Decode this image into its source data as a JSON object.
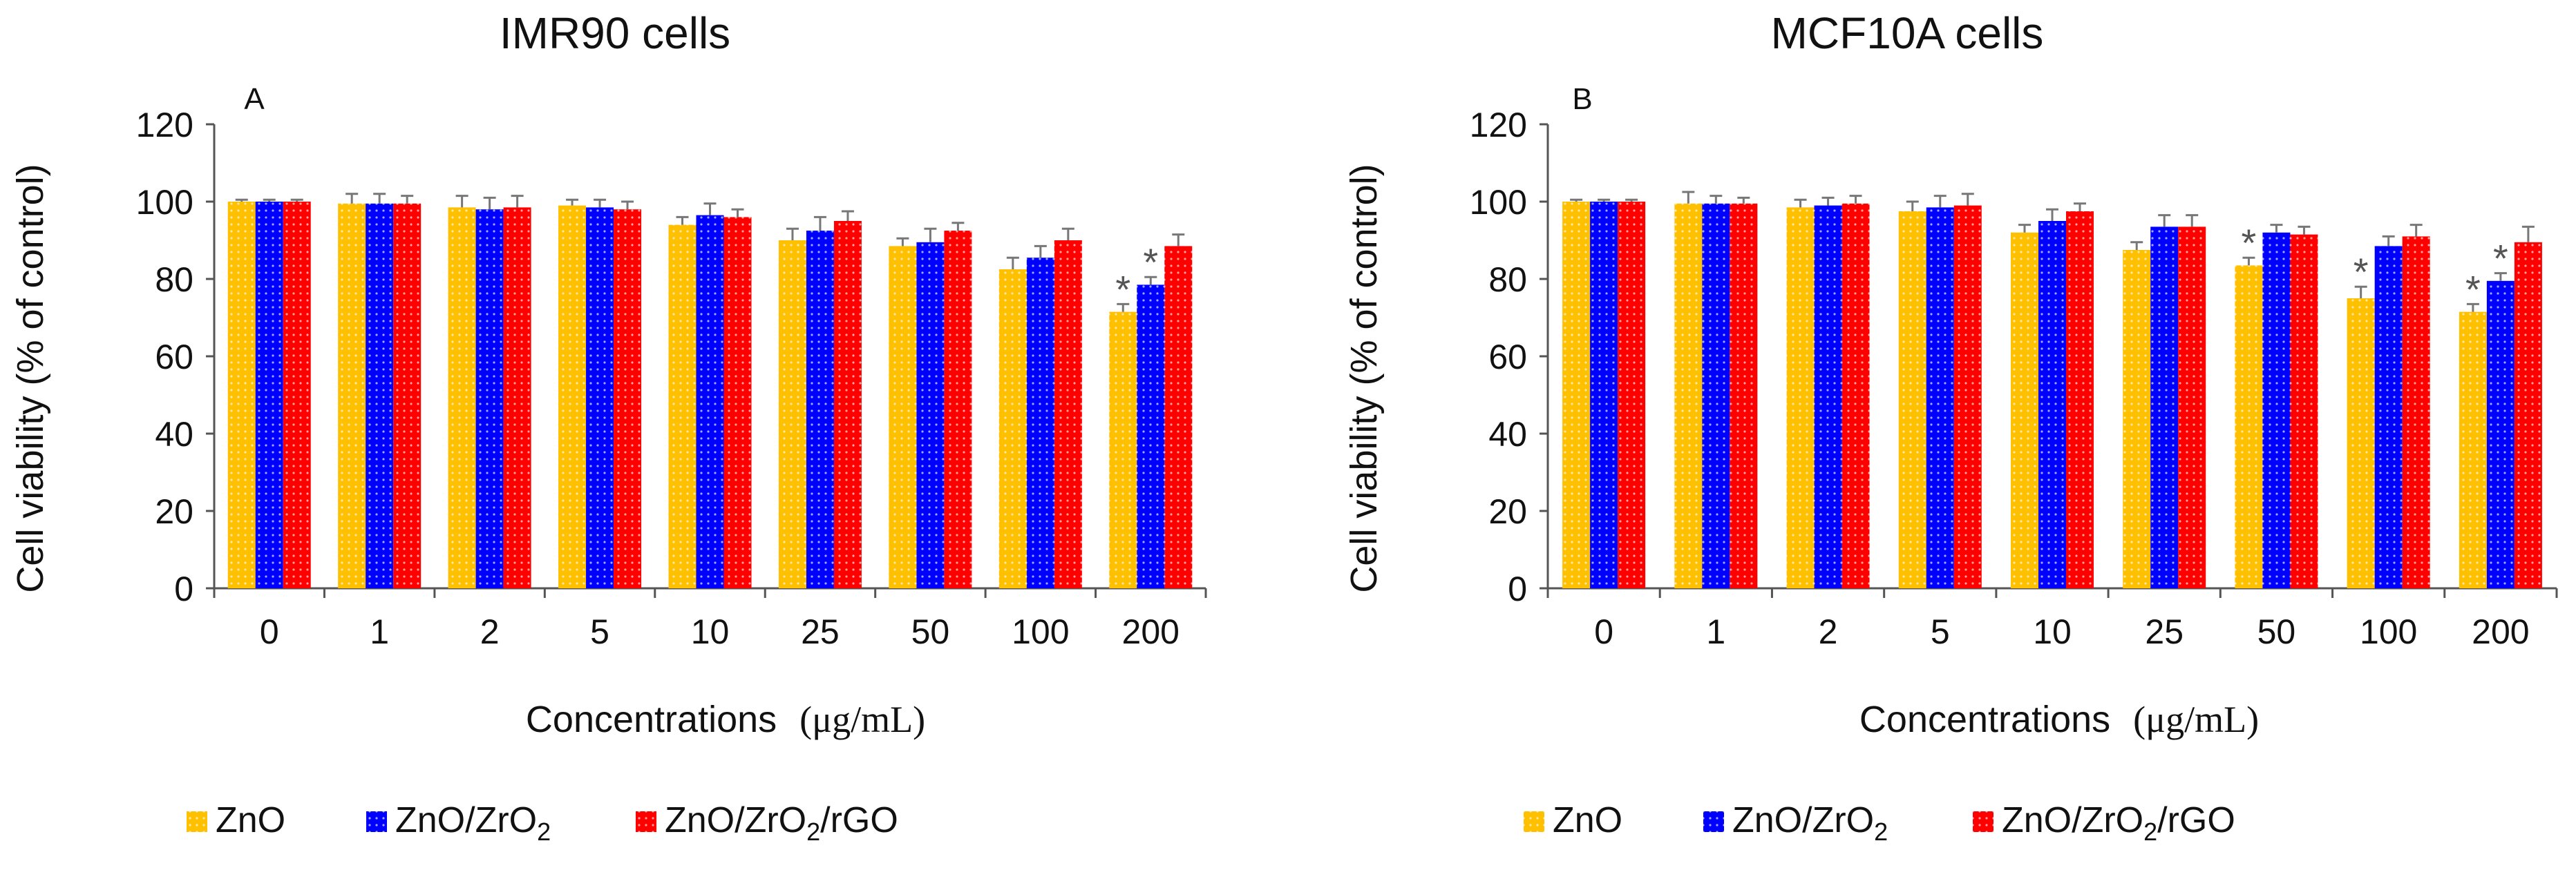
{
  "colors": {
    "zno": "#FFC000",
    "zno_zro2": "#0000FF",
    "zno_zro2_rgo": "#FF0000",
    "error_bar": "#777777",
    "axis": "#555555"
  },
  "chart_data": [
    {
      "type": "bar",
      "panel": "A",
      "title": "IMR90 cells",
      "xlabel": "Concentrations",
      "xunit": "(μg/mL)",
      "ylabel": "Cell viability (% of control)",
      "ylim": [
        0,
        120
      ],
      "yticks": [
        "0",
        "20",
        "40",
        "60",
        "80",
        "100",
        "120"
      ],
      "categories": [
        "0",
        "1",
        "2",
        "5",
        "10",
        "25",
        "50",
        "100",
        "200"
      ],
      "series": [
        {
          "name": "ZnO",
          "values": [
            100,
            99.5,
            98.5,
            99,
            94,
            90,
            88.5,
            82.5,
            71.5
          ],
          "errors": [
            0.5,
            2.5,
            3,
            1.5,
            2,
            3,
            2,
            3,
            2
          ],
          "stars": [
            false,
            false,
            false,
            false,
            false,
            false,
            false,
            false,
            true
          ]
        },
        {
          "name": "ZnO/ZrO2",
          "values": [
            100,
            99.5,
            98,
            98.5,
            96.5,
            92.5,
            89.5,
            85.5,
            78.5
          ],
          "errors": [
            0.5,
            2.5,
            3,
            2,
            3,
            3.5,
            3.5,
            3,
            2
          ],
          "stars": [
            false,
            false,
            false,
            false,
            false,
            false,
            false,
            false,
            true
          ]
        },
        {
          "name": "ZnO/ZrO2/rGO",
          "values": [
            100,
            99.5,
            98.5,
            98,
            96,
            95,
            92.5,
            90,
            88.5
          ],
          "errors": [
            0.5,
            2,
            3,
            2,
            2,
            2.5,
            2,
            3,
            3
          ],
          "stars": [
            false,
            false,
            false,
            false,
            false,
            false,
            false,
            false,
            false
          ]
        }
      ]
    },
    {
      "type": "bar",
      "panel": "B",
      "title": "MCF10A cells",
      "xlabel": "Concentrations",
      "xunit": "(μg/mL)",
      "ylabel": "Cell viability (% of control)",
      "ylim": [
        0,
        120
      ],
      "yticks": [
        "0",
        "20",
        "40",
        "60",
        "80",
        "100",
        "120"
      ],
      "categories": [
        "0",
        "1",
        "2",
        "5",
        "10",
        "25",
        "50",
        "100",
        "200"
      ],
      "series": [
        {
          "name": "ZnO",
          "values": [
            100,
            99.5,
            98.5,
            97.5,
            92,
            87.5,
            83.5,
            75,
            71.5
          ],
          "errors": [
            0.5,
            3,
            2,
            2.5,
            2,
            2,
            2,
            3,
            2
          ],
          "stars": [
            false,
            false,
            false,
            false,
            false,
            false,
            true,
            true,
            true
          ]
        },
        {
          "name": "ZnO/ZrO2",
          "values": [
            100,
            99.5,
            99,
            98.5,
            95,
            93.5,
            92,
            88.5,
            79.5
          ],
          "errors": [
            0.5,
            2,
            2,
            3,
            3,
            3,
            2,
            2.5,
            2
          ],
          "stars": [
            false,
            false,
            false,
            false,
            false,
            false,
            false,
            false,
            true
          ]
        },
        {
          "name": "ZnO/ZrO2/rGO",
          "values": [
            100,
            99.5,
            99.5,
            99,
            97.5,
            93.5,
            91.5,
            91,
            89.5
          ],
          "errors": [
            0.5,
            1.5,
            2,
            3,
            2,
            3,
            2,
            3,
            4
          ],
          "stars": [
            false,
            false,
            false,
            false,
            false,
            false,
            false,
            false,
            false
          ]
        }
      ]
    }
  ],
  "legend": [
    {
      "label": "ZnO",
      "color_key": "zno"
    },
    {
      "label": "ZnO/ZrO",
      "sub": "2",
      "color_key": "zno_zro2"
    },
    {
      "label": "ZnO/ZrO",
      "sub": "2",
      "tail": "/rGO",
      "color_key": "zno_zro2_rgo"
    }
  ],
  "star_symbol": "*"
}
